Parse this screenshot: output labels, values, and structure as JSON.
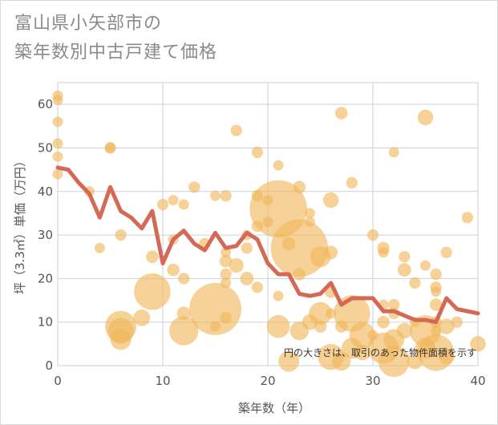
{
  "title": {
    "line1": "富山県小矢部市の",
    "line2": "築年数別中古戸建て価格"
  },
  "colors": {
    "bubble": "#f0b75a",
    "line": "#d46a55",
    "grid": "#c8d2dc"
  },
  "chart_data": {
    "type": "scatter",
    "xlabel": "築年数（年）",
    "ylabel": "坪（3.3㎡）単価（万円）",
    "xlim": [
      0,
      40
    ],
    "ylim": [
      0,
      65
    ],
    "x_ticks": [
      0,
      10,
      20,
      30,
      40
    ],
    "y_ticks": [
      0,
      10,
      20,
      30,
      40,
      50,
      60
    ],
    "note": "円の大きさは、取引のあった物件面積を示す",
    "bubbles": [
      {
        "x": 0,
        "y": 62,
        "s": 1
      },
      {
        "x": 0,
        "y": 61,
        "s": 1
      },
      {
        "x": 0,
        "y": 56,
        "s": 1
      },
      {
        "x": 0,
        "y": 51,
        "s": 1
      },
      {
        "x": 0,
        "y": 48,
        "s": 1
      },
      {
        "x": 0,
        "y": 44,
        "s": 1
      },
      {
        "x": 3,
        "y": 40,
        "s": 1
      },
      {
        "x": 4,
        "y": 27,
        "s": 1
      },
      {
        "x": 5,
        "y": 50,
        "s": 1.1
      },
      {
        "x": 5,
        "y": 50,
        "s": 1
      },
      {
        "x": 6,
        "y": 30,
        "s": 1.1
      },
      {
        "x": 6,
        "y": 9,
        "s": 3
      },
      {
        "x": 6,
        "y": 8,
        "s": 2.5
      },
      {
        "x": 6,
        "y": 6,
        "s": 2
      },
      {
        "x": 8,
        "y": 11,
        "s": 1.6
      },
      {
        "x": 9,
        "y": 17,
        "s": 3.5
      },
      {
        "x": 9,
        "y": 25,
        "s": 1.2
      },
      {
        "x": 10,
        "y": 37,
        "s": 1.1
      },
      {
        "x": 11,
        "y": 38,
        "s": 1
      },
      {
        "x": 11,
        "y": 29,
        "s": 1
      },
      {
        "x": 11,
        "y": 22,
        "s": 1.2
      },
      {
        "x": 12,
        "y": 37,
        "s": 1
      },
      {
        "x": 12,
        "y": 20,
        "s": 1.1
      },
      {
        "x": 12,
        "y": 12,
        "s": 1.3
      },
      {
        "x": 12,
        "y": 8,
        "s": 2.8
      },
      {
        "x": 13,
        "y": 41,
        "s": 1.1
      },
      {
        "x": 14,
        "y": 28,
        "s": 1.1
      },
      {
        "x": 15,
        "y": 39,
        "s": 1
      },
      {
        "x": 15,
        "y": 13,
        "s": 5
      },
      {
        "x": 15,
        "y": 9,
        "s": 1
      },
      {
        "x": 16,
        "y": 39,
        "s": 1.1
      },
      {
        "x": 16,
        "y": 26,
        "s": 1
      },
      {
        "x": 16,
        "y": 24,
        "s": 1.2
      },
      {
        "x": 16,
        "y": 21,
        "s": 1.1
      },
      {
        "x": 16,
        "y": 19,
        "s": 1
      },
      {
        "x": 16,
        "y": 11,
        "s": 1.1
      },
      {
        "x": 17,
        "y": 54,
        "s": 1.1
      },
      {
        "x": 17,
        "y": 23,
        "s": 1.4
      },
      {
        "x": 18,
        "y": 30,
        "s": 1
      },
      {
        "x": 18,
        "y": 27,
        "s": 1.1
      },
      {
        "x": 18,
        "y": 20,
        "s": 1.3
      },
      {
        "x": 19,
        "y": 49,
        "s": 1.1
      },
      {
        "x": 19,
        "y": 39,
        "s": 1.1
      },
      {
        "x": 19,
        "y": 32,
        "s": 1.1
      },
      {
        "x": 19,
        "y": 18,
        "s": 1.1
      },
      {
        "x": 20,
        "y": 38,
        "s": 1
      },
      {
        "x": 20,
        "y": 33,
        "s": 1
      },
      {
        "x": 21,
        "y": 46,
        "s": 1
      },
      {
        "x": 21,
        "y": 36,
        "s": 5.5
      },
      {
        "x": 21,
        "y": 16,
        "s": 1
      },
      {
        "x": 21,
        "y": 9,
        "s": 2.2
      },
      {
        "x": 22,
        "y": 28,
        "s": 1.3
      },
      {
        "x": 22,
        "y": 1,
        "s": 2
      },
      {
        "x": 23,
        "y": 41,
        "s": 1.2
      },
      {
        "x": 23,
        "y": 27,
        "s": 5.5
      },
      {
        "x": 23,
        "y": 21,
        "s": 1.2
      },
      {
        "x": 23,
        "y": 8,
        "s": 1.8
      },
      {
        "x": 24,
        "y": 35,
        "s": 1
      },
      {
        "x": 24,
        "y": 33,
        "s": 1
      },
      {
        "x": 24,
        "y": 10,
        "s": 1.5
      },
      {
        "x": 25,
        "y": 25,
        "s": 2
      },
      {
        "x": 25,
        "y": 12,
        "s": 2.2
      },
      {
        "x": 25,
        "y": 9,
        "s": 1.2
      },
      {
        "x": 26,
        "y": 38,
        "s": 1.5
      },
      {
        "x": 26,
        "y": 26,
        "s": 1.3
      },
      {
        "x": 26,
        "y": 17,
        "s": 1.2
      },
      {
        "x": 26,
        "y": 12,
        "s": 1
      },
      {
        "x": 26,
        "y": 2,
        "s": 2.5
      },
      {
        "x": 27,
        "y": 58,
        "s": 1.2
      },
      {
        "x": 27,
        "y": 9,
        "s": 1.2
      },
      {
        "x": 27,
        "y": 1,
        "s": 1.8
      },
      {
        "x": 28,
        "y": 42,
        "s": 1.1
      },
      {
        "x": 28,
        "y": 12,
        "s": 3.5
      },
      {
        "x": 28,
        "y": 4,
        "s": 2
      },
      {
        "x": 29,
        "y": 7,
        "s": 2.5
      },
      {
        "x": 29,
        "y": 3,
        "s": 1.5
      },
      {
        "x": 30,
        "y": 30,
        "s": 1.1
      },
      {
        "x": 30,
        "y": 7,
        "s": 1
      },
      {
        "x": 31,
        "y": 27,
        "s": 1.2
      },
      {
        "x": 31,
        "y": 26,
        "s": 1
      },
      {
        "x": 31,
        "y": 14,
        "s": 1
      },
      {
        "x": 31,
        "y": 10,
        "s": 1.2
      },
      {
        "x": 31,
        "y": 4,
        "s": 3
      },
      {
        "x": 32,
        "y": 49,
        "s": 1
      },
      {
        "x": 32,
        "y": 14,
        "s": 1.1
      },
      {
        "x": 32,
        "y": 12,
        "s": 1.1
      },
      {
        "x": 32,
        "y": 6,
        "s": 2
      },
      {
        "x": 32,
        "y": 1,
        "s": 3
      },
      {
        "x": 33,
        "y": 25,
        "s": 1.1
      },
      {
        "x": 33,
        "y": 22,
        "s": 1.3
      },
      {
        "x": 33,
        "y": 8,
        "s": 1.5
      },
      {
        "x": 34,
        "y": 19,
        "s": 1.1
      },
      {
        "x": 34,
        "y": 10,
        "s": 1
      },
      {
        "x": 34,
        "y": 1,
        "s": 1.5
      },
      {
        "x": 35,
        "y": 57,
        "s": 1.5
      },
      {
        "x": 35,
        "y": 23,
        "s": 1
      },
      {
        "x": 35,
        "y": 8,
        "s": 3
      },
      {
        "x": 35,
        "y": 4,
        "s": 2
      },
      {
        "x": 36,
        "y": 21,
        "s": 1.1
      },
      {
        "x": 36,
        "y": 18,
        "s": 1.1
      },
      {
        "x": 36,
        "y": 17,
        "s": 1
      },
      {
        "x": 36,
        "y": 14,
        "s": 1.2
      },
      {
        "x": 36,
        "y": 10,
        "s": 1.1
      },
      {
        "x": 36,
        "y": 8,
        "s": 1
      },
      {
        "x": 36,
        "y": 3,
        "s": 3.5
      },
      {
        "x": 37,
        "y": 26,
        "s": 1.1
      },
      {
        "x": 37,
        "y": 9,
        "s": 1.5
      },
      {
        "x": 37,
        "y": 2,
        "s": 1.5
      },
      {
        "x": 38,
        "y": 10,
        "s": 1.1
      },
      {
        "x": 39,
        "y": 34,
        "s": 1.1
      },
      {
        "x": 40,
        "y": 5,
        "s": 1.5
      }
    ],
    "trend": {
      "x": [
        0,
        1,
        2,
        3,
        4,
        5,
        6,
        7,
        8,
        9,
        10,
        11,
        12,
        13,
        14,
        15,
        16,
        17,
        18,
        19,
        20,
        21,
        22,
        23,
        24,
        25,
        26,
        27,
        28,
        29,
        30,
        31,
        32,
        33,
        34,
        35,
        36,
        37,
        38,
        39,
        40
      ],
      "y": [
        45.5,
        45,
        42,
        39.5,
        34,
        41,
        35.5,
        34,
        31.5,
        35.5,
        23.5,
        29,
        31,
        28,
        26.5,
        30.5,
        27,
        27.5,
        30.5,
        29,
        23.5,
        21,
        21,
        16.5,
        16,
        16.5,
        19,
        14,
        15.5,
        15.5,
        15.5,
        12.5,
        12.5,
        11.5,
        10.5,
        10.5,
        10,
        15.5,
        13,
        12.5,
        12
      ]
    }
  }
}
